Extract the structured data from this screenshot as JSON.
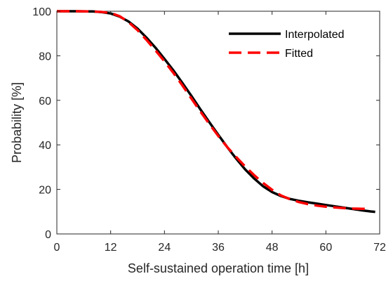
{
  "chart_data": {
    "type": "line",
    "title": "",
    "xlabel": "Self-sustained operation time [h]",
    "ylabel": "Probability [%]",
    "xlim": [
      0,
      72
    ],
    "ylim": [
      0,
      100
    ],
    "xticks": [
      0,
      12,
      24,
      36,
      48,
      60,
      72
    ],
    "yticks": [
      0,
      20,
      40,
      60,
      80,
      100
    ],
    "grid": false,
    "legend_position": "top-right",
    "series": [
      {
        "name": "Interpolated",
        "color": "#000000",
        "style": "solid",
        "x": [
          0,
          4,
          8,
          10,
          12,
          14,
          16,
          18,
          20,
          22,
          24,
          26,
          28,
          30,
          32,
          34,
          36,
          38,
          40,
          42,
          44,
          46,
          48,
          50,
          52,
          54,
          56,
          58,
          60,
          62,
          64,
          66,
          68,
          70,
          71
        ],
        "y": [
          100,
          100,
          99.9,
          99.6,
          99,
          97.6,
          95.4,
          92.2,
          88.1,
          83.6,
          78.6,
          73.4,
          67.8,
          62,
          56,
          50.2,
          44.5,
          39,
          33.8,
          29,
          24.9,
          21.4,
          18.8,
          17,
          15.7,
          14.9,
          14.2,
          13.6,
          13,
          12.4,
          11.8,
          11.2,
          10.6,
          10.1,
          9.9
        ]
      },
      {
        "name": "Fitted",
        "color": "#ff0000",
        "style": "dashed",
        "x": [
          0,
          4,
          8,
          10,
          12,
          14,
          16,
          18,
          20,
          22,
          24,
          26,
          28,
          30,
          32,
          34,
          36,
          38,
          40,
          42,
          44,
          46,
          48,
          50,
          52,
          54,
          56,
          58,
          60,
          62,
          64,
          66,
          68,
          70
        ],
        "y": [
          100,
          100,
          99.9,
          99.7,
          99.2,
          97.8,
          95.1,
          91.5,
          87.1,
          82.4,
          77.5,
          72.3,
          66.7,
          60.8,
          55,
          49.4,
          44,
          39,
          34.5,
          30.3,
          26.4,
          22.9,
          19.8,
          17.3,
          15.6,
          14.3,
          13.4,
          12.7,
          12.2,
          11.9,
          11.6,
          11.4,
          11.3,
          11.2
        ]
      }
    ]
  }
}
